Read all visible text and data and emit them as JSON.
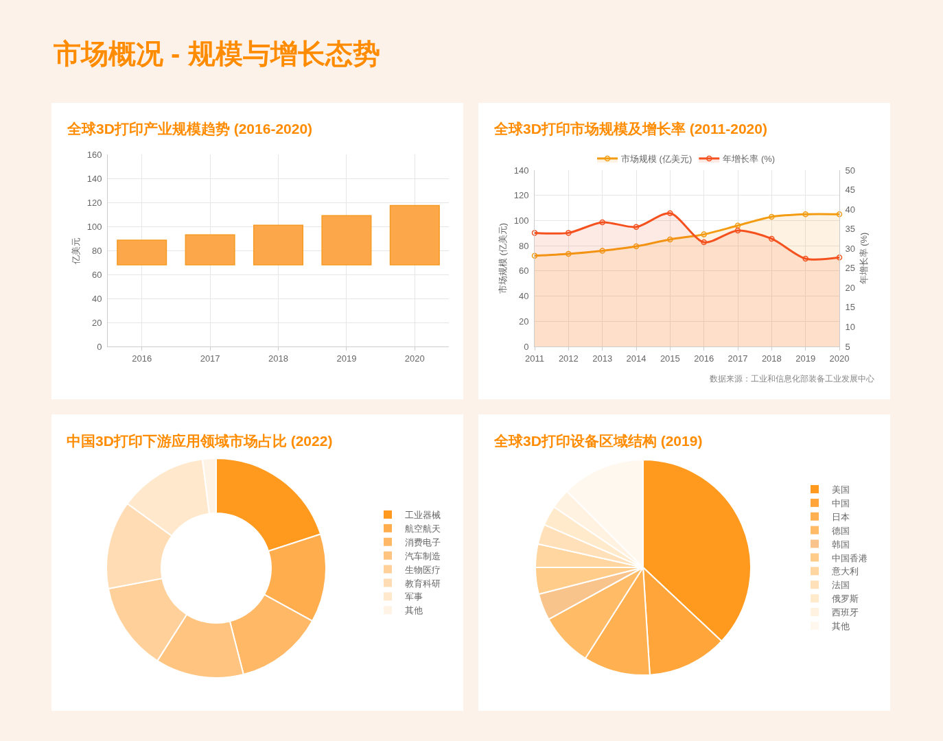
{
  "chart_data": [
    {
      "type": "other",
      "title": "市场概况 - 规模与增长态势"
    },
    {
      "type": "bar",
      "title": "全球3D打印产业规模趋势 (2016-2020)",
      "ylabel": "亿美元",
      "categories": [
        "2016",
        "2017",
        "2018",
        "2019",
        "2020"
      ],
      "values": [
        20.5,
        25,
        33,
        41,
        49.5
      ],
      "base": [
        68,
        68,
        68,
        68,
        68
      ],
      "color": "#fca84a",
      "ylim": [
        0,
        160
      ],
      "yticks": [
        0,
        20,
        40,
        60,
        80,
        100,
        120,
        140,
        160
      ],
      "grid": true
    },
    {
      "type": "area",
      "title": "全球3D打印市场规模及增长率 (2011-2020)",
      "ylabel": "市场规模 (亿美元)",
      "y2label": "年增长率 (%)",
      "categories": [
        "2011",
        "2012",
        "2013",
        "2014",
        "2015",
        "2016",
        "2017",
        "2018",
        "2019",
        "2020"
      ],
      "series": [
        {
          "name": "市场规模 (亿美元)",
          "color": "#f39c12",
          "values": [
            72,
            73.5,
            76,
            79.5,
            85,
            89,
            96,
            103,
            105,
            105
          ]
        },
        {
          "name": "年增长率 (%)",
          "color": "#f4511e",
          "axis": "y2",
          "values": [
            34,
            34,
            36.7,
            35.5,
            39,
            31.6,
            34.6,
            32.5,
            27.4,
            27.7
          ]
        }
      ],
      "ylim": [
        0,
        140
      ],
      "yticks": [
        0,
        20,
        40,
        60,
        80,
        100,
        120,
        140
      ],
      "y2lim": [
        5,
        50
      ],
      "y2ticks": [
        5,
        10,
        15,
        20,
        25,
        30,
        35,
        40,
        45,
        50
      ],
      "grid": true,
      "legend": "top",
      "marker": "circle",
      "annotations": [
        "数据来源：工业和信息化部装备工业发展中心"
      ]
    },
    {
      "type": "donut",
      "title": "中国3D打印下游应用领域市场占比 (2022)",
      "categories": [
        "工业器械",
        "航空航天",
        "消费电子",
        "汽车制造",
        "生物医疗",
        "教育科研",
        "军事",
        "其他"
      ],
      "values": [
        20,
        13,
        13,
        13,
        13,
        13,
        13,
        2
      ],
      "colors": [
        "#ff9a1f",
        "#ffad4d",
        "#ffb866",
        "#ffc480",
        "#ffd099",
        "#ffdcb3",
        "#ffe8cc",
        "#fff3e6"
      ],
      "legend": "right"
    },
    {
      "type": "pie",
      "title": "全球3D打印设备区域结构 (2019)",
      "categories": [
        "美国",
        "中国",
        "日本",
        "德国",
        "韩国",
        "中国香港",
        "意大利",
        "法国",
        "俄罗斯",
        "西班牙",
        "其他"
      ],
      "values": [
        37,
        12,
        10,
        8,
        4,
        4,
        3.5,
        3,
        3,
        3,
        12.5
      ],
      "colors": [
        "#ff9a1f",
        "#ffa53a",
        "#ffb050",
        "#ffbb66",
        "#f9c48c",
        "#ffcc8a",
        "#ffd6a0",
        "#ffe0b8",
        "#ffeacc",
        "#fff2e0",
        "#fff8ee"
      ],
      "legend": "right"
    }
  ]
}
